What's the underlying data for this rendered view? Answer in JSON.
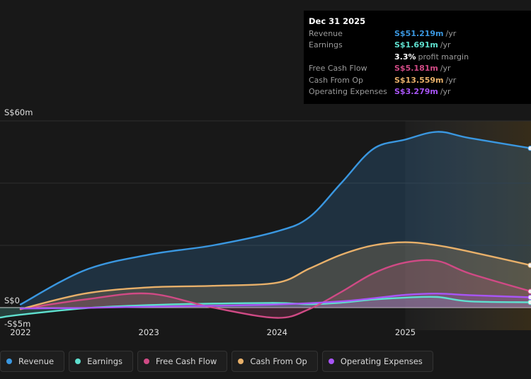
{
  "chart_data": {
    "type": "area",
    "y_axis": {
      "top_label": "S$60m",
      "zero_label": "S$0",
      "bottom_label": "-S$5m",
      "ylim": [
        -5,
        60
      ]
    },
    "x_axis": {
      "ticks": [
        "2022",
        "2023",
        "2024",
        "2025"
      ],
      "tick_values": [
        2022,
        2023,
        2024,
        2025
      ],
      "xlim": [
        2021.84,
        2025.98
      ]
    },
    "forecast_start": 2025.0,
    "series": [
      {
        "name": "Revenue",
        "color": "#3a97e0",
        "x": [
          2022.0,
          2022.5,
          2023.0,
          2023.5,
          2024.0,
          2024.25,
          2024.5,
          2024.75,
          2025.0,
          2025.25,
          2025.5,
          2025.98
        ],
        "values": [
          1.0,
          12.0,
          17.0,
          20.0,
          24.5,
          29.0,
          40.0,
          51.0,
          54.0,
          56.5,
          54.5,
          51.2
        ]
      },
      {
        "name": "Earnings",
        "color": "#5fe0cf",
        "x": [
          2021.84,
          2022.0,
          2022.5,
          2023.0,
          2023.5,
          2024.0,
          2024.25,
          2024.5,
          2024.75,
          2025.0,
          2025.25,
          2025.5,
          2025.98
        ],
        "values": [
          -3.2,
          -2.3,
          -0.2,
          0.8,
          1.3,
          1.5,
          1.1,
          1.6,
          2.6,
          3.2,
          3.4,
          2.0,
          1.7
        ]
      },
      {
        "name": "Free Cash Flow",
        "color": "#d04a85",
        "x": [
          2022.0,
          2022.5,
          2023.0,
          2023.5,
          2024.0,
          2024.25,
          2024.5,
          2024.75,
          2025.0,
          2025.25,
          2025.5,
          2025.98
        ],
        "values": [
          -0.5,
          2.6,
          4.5,
          0.0,
          -3.3,
          -0.5,
          5.0,
          11.0,
          14.5,
          15.0,
          11.0,
          5.2
        ]
      },
      {
        "name": "Cash From Op",
        "color": "#e8b06a",
        "x": [
          2022.0,
          2022.5,
          2023.0,
          2023.5,
          2024.0,
          2024.25,
          2024.5,
          2024.75,
          2025.0,
          2025.25,
          2025.5,
          2025.98
        ],
        "values": [
          -0.5,
          4.5,
          6.5,
          7.0,
          8.0,
          12.5,
          17.0,
          20.0,
          21.0,
          20.0,
          18.0,
          13.6
        ]
      },
      {
        "name": "Operating Expenses",
        "color": "#a855f7",
        "x": [
          2022.0,
          2022.5,
          2023.0,
          2023.5,
          2024.0,
          2024.5,
          2024.75,
          2025.0,
          2025.25,
          2025.5,
          2025.98
        ],
        "values": [
          -0.3,
          -0.1,
          0.3,
          0.6,
          1.0,
          2.0,
          3.0,
          4.1,
          4.5,
          4.0,
          3.3
        ]
      }
    ]
  },
  "tooltip": {
    "date": "Dec 31 2025",
    "rows": [
      {
        "label": "Revenue",
        "value": "S$51.219m",
        "unit": "/yr",
        "color": "#3a97e0"
      },
      {
        "label": "Earnings",
        "value": "S$1.691m",
        "unit": "/yr",
        "color": "#5fe0cf"
      },
      {
        "label": "",
        "value": "3.3%",
        "unit": "profit margin",
        "color": "#ffffff"
      },
      {
        "label": "Free Cash Flow",
        "value": "S$5.181m",
        "unit": "/yr",
        "color": "#d04a85"
      },
      {
        "label": "Cash From Op",
        "value": "S$13.559m",
        "unit": "/yr",
        "color": "#e8b06a"
      },
      {
        "label": "Operating Expenses",
        "value": "S$3.279m",
        "unit": "/yr",
        "color": "#a855f7"
      }
    ]
  },
  "legend": [
    {
      "label": "Revenue",
      "color": "#3a97e0"
    },
    {
      "label": "Earnings",
      "color": "#5fe0cf"
    },
    {
      "label": "Free Cash Flow",
      "color": "#d04a85"
    },
    {
      "label": "Cash From Op",
      "color": "#e8b06a"
    },
    {
      "label": "Operating Expenses",
      "color": "#a855f7"
    }
  ]
}
